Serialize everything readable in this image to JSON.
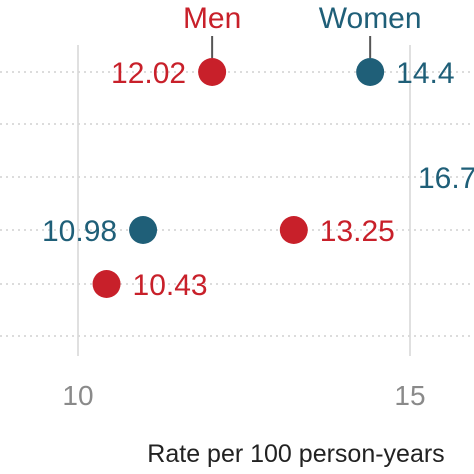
{
  "chart_data": {
    "type": "scatter",
    "title": "",
    "xlabel": "Rate per 100 person-years",
    "ylabel": "",
    "xlim": [
      9.8,
      15.3
    ],
    "xticks": [
      10,
      15
    ],
    "x_tick_labels": [
      "10",
      "15"
    ],
    "grid": true,
    "colors": {
      "Men": "#c8202a",
      "Women": "#1f5f78"
    },
    "series": [
      {
        "name": "Men",
        "color": "#c8202a",
        "points": [
          {
            "row": 1,
            "x": 12.02,
            "label": "12.02"
          },
          {
            "row": 4,
            "x": 13.25,
            "label": "13.25"
          },
          {
            "row": 5,
            "x": 10.43,
            "label": "10.43"
          }
        ]
      },
      {
        "name": "Women",
        "color": "#1f5f78",
        "points": [
          {
            "row": 1,
            "x": 14.4,
            "label": "14.4"
          },
          {
            "row": 3,
            "x": 16.7,
            "label": "16.7"
          },
          {
            "row": 4,
            "x": 10.98,
            "label": "10.98"
          }
        ]
      }
    ],
    "rows": 6
  }
}
